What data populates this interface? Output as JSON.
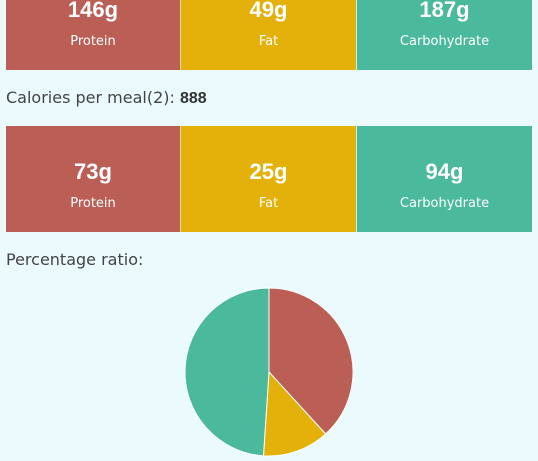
{
  "daily_macros": {
    "protein": {
      "value": "146g",
      "label": "Protein"
    },
    "fat": {
      "value": "49g",
      "label": "Fat"
    },
    "carbohydrate": {
      "value": "187g",
      "label": "Carbohydrate"
    }
  },
  "meal": {
    "label": "Calories per meal(2):",
    "calories": "888"
  },
  "meal_macros": {
    "protein": {
      "value": "73g",
      "label": "Protein"
    },
    "fat": {
      "value": "25g",
      "label": "Fat"
    },
    "carbohydrate": {
      "value": "94g",
      "label": "Carbohydrate"
    }
  },
  "ratio": {
    "label": "Percentage ratio:"
  },
  "colors": {
    "protein": "#bb5f56",
    "fat": "#e4b10b",
    "carbohydrate": "#4bb99b",
    "background": "#eafafd"
  },
  "chart_data": {
    "type": "pie",
    "categories": [
      "Protein",
      "Fat",
      "Carbohydrate"
    ],
    "values": [
      146,
      49,
      187
    ]
  }
}
